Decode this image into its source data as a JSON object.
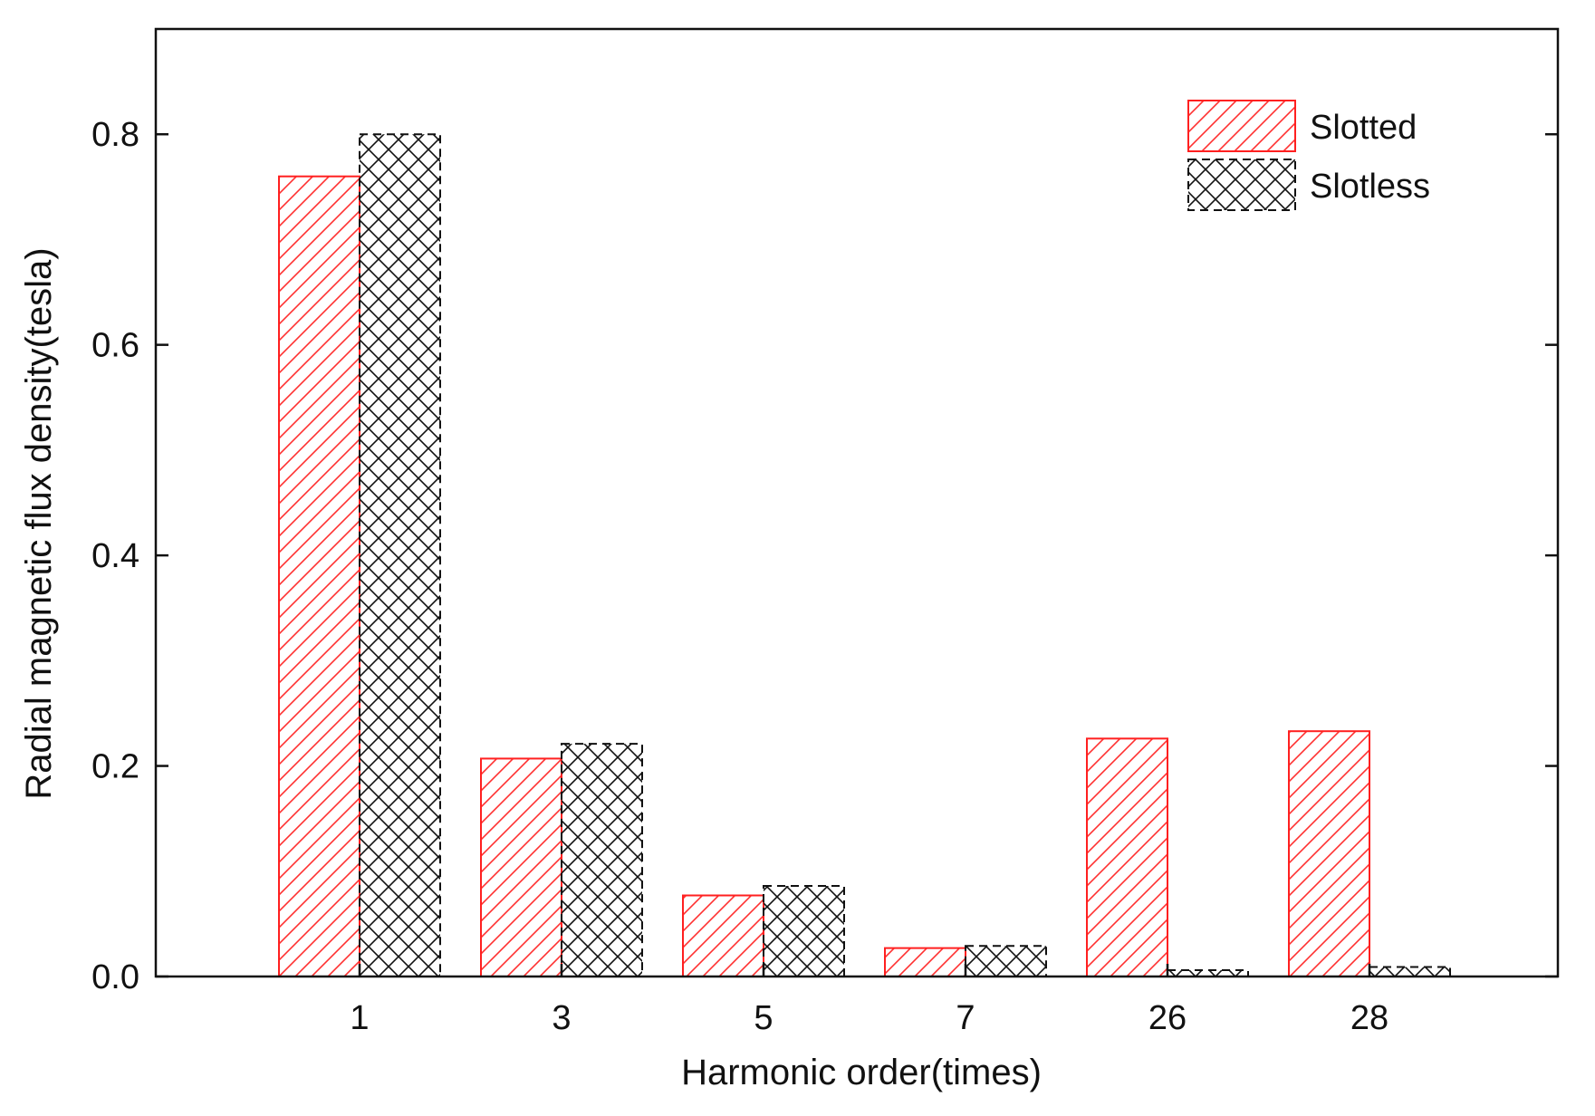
{
  "chart_data": {
    "type": "bar",
    "title": "",
    "xlabel": "Harmonic order(times)",
    "ylabel": "Radial magnetic flux density(tesla)",
    "categories": [
      "1",
      "3",
      "5",
      "7",
      "26",
      "28"
    ],
    "ylim": [
      0,
      0.9
    ],
    "yticks": [
      "0.0",
      "0.2",
      "0.4",
      "0.6",
      "0.8"
    ],
    "ytick_values": [
      0,
      0.2,
      0.4,
      0.6,
      0.8
    ],
    "grid": false,
    "legend_position": "top-right",
    "series": [
      {
        "name": "Slotted",
        "values": [
          0.76,
          0.207,
          0.077,
          0.027,
          0.226,
          0.233
        ],
        "color": "#ff2020",
        "pattern": "diagonal-hatch",
        "border": "solid"
      },
      {
        "name": "Slotless",
        "values": [
          0.8,
          0.221,
          0.086,
          0.029,
          0.006,
          0.009
        ],
        "color": "#111111",
        "pattern": "cross-hatch",
        "border": "dashed"
      }
    ]
  }
}
